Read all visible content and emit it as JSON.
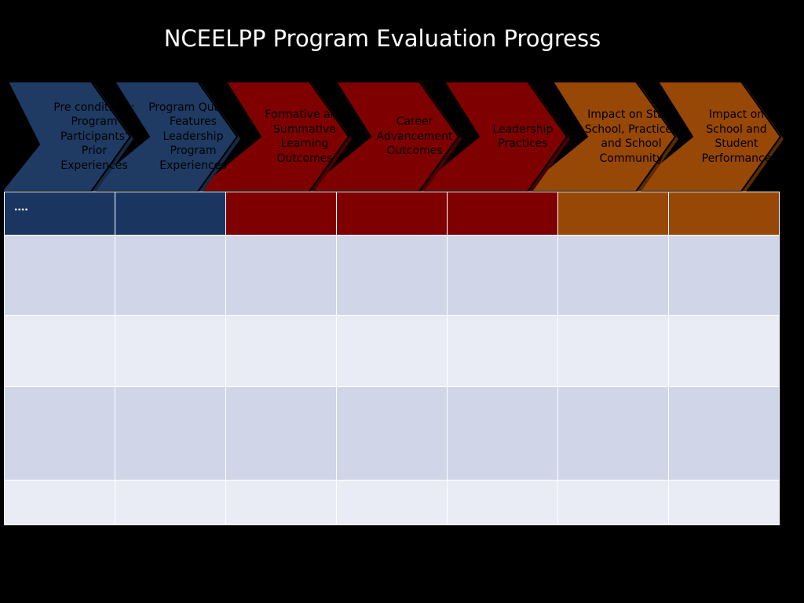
{
  "title": "NCEELPP Program Evaluation Progress",
  "colors": {
    "blue": "#1f3b63",
    "red": "#7f0000",
    "orange": "#974706",
    "row_dark": "#d0d6e8",
    "row_light": "#e9ecf4"
  },
  "chevrons": [
    {
      "label": "Pre conditions:\nProgram\nParticipants'\nPrior\nExperiences",
      "color": "blue"
    },
    {
      "label": "Program Quality\nFeatures\nLeadership\nProgram\nExperiences",
      "color": "blue"
    },
    {
      "label": "Formative and\nSummative\nLearning\nOutcomes",
      "color": "red"
    },
    {
      "label": "Career\nAdvancement\nOutcomes",
      "color": "red"
    },
    {
      "label": "Leadership\nPractices",
      "color": "red"
    },
    {
      "label": "Impact on Staff,\nSchool, Practices\nand School\nCommunity",
      "color": "orange"
    },
    {
      "label": "Impact on\nSchool and\nStudent\nPerformance",
      "color": "orange"
    }
  ],
  "table": {
    "header_cells": [
      "....",
      "",
      "",
      "",
      "",
      "",
      ""
    ]
  }
}
